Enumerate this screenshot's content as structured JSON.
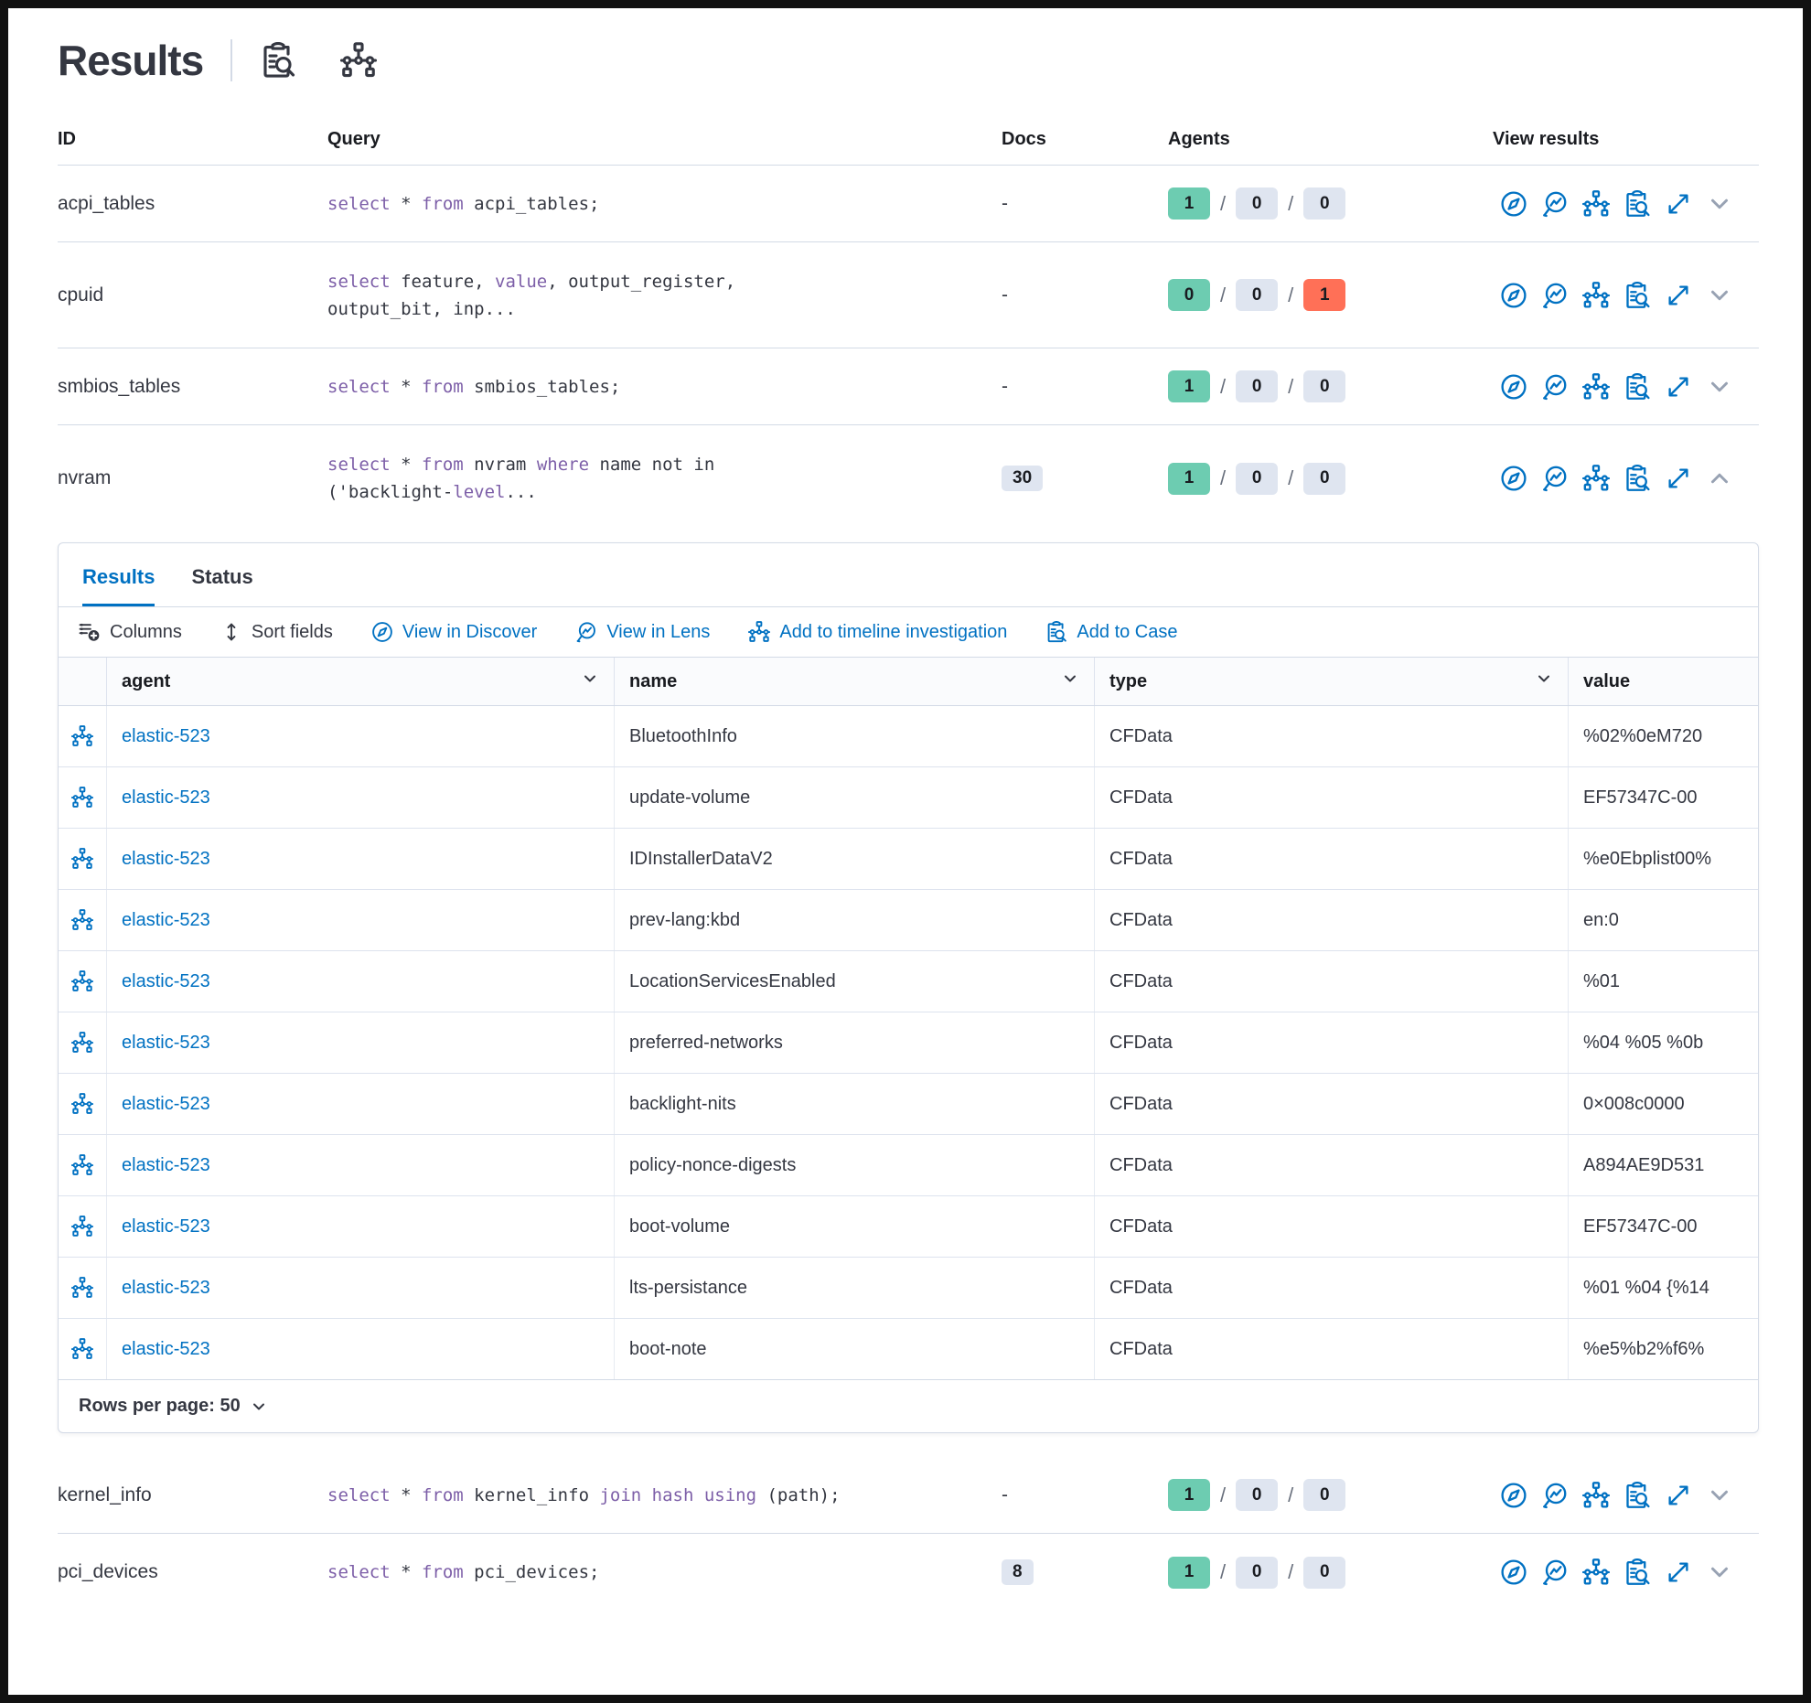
{
  "title": "Results",
  "colors": {
    "primary": "#0071c2",
    "keyword": "#7d5fa8",
    "success-badge": "#6dccb1",
    "danger-badge": "#ff7057",
    "neutral-badge": "#dfe5f0",
    "text": "#343741"
  },
  "icons": {
    "inspect": "clipboard-with-magnifier",
    "timeline": "org-chart-network",
    "discover": "compass",
    "lens": "magnifier-with-chart",
    "expand": "diagonal-expand-arrows",
    "columns": "list-with-add",
    "sort": "up-down-arrow",
    "chevron_down": "chevron-down",
    "chevron_up": "chevron-up"
  },
  "main_table": {
    "columns": {
      "id": "ID",
      "query": "Query",
      "docs": "Docs",
      "agents": "Agents",
      "view": "View results"
    }
  },
  "queries": [
    {
      "id": "acpi_tables",
      "docs": "-",
      "agents": [
        "1",
        "0",
        "0"
      ],
      "segments": [
        {
          "t": "select",
          "k": true
        },
        {
          "t": " * "
        },
        {
          "t": "from",
          "k": true
        },
        {
          "t": " acpi_tables;"
        }
      ]
    },
    {
      "id": "cpuid",
      "docs": "-",
      "agents": [
        "0",
        "0",
        "1"
      ],
      "segments": [
        {
          "t": "select",
          "k": true
        },
        {
          "t": " feature, "
        },
        {
          "t": "value",
          "k": true
        },
        {
          "t": ", output_register,\noutput_bit, inp..."
        }
      ]
    },
    {
      "id": "smbios_tables",
      "docs": "-",
      "agents": [
        "1",
        "0",
        "0"
      ],
      "segments": [
        {
          "t": "select",
          "k": true
        },
        {
          "t": " * "
        },
        {
          "t": "from",
          "k": true
        },
        {
          "t": " smbios_tables;"
        }
      ]
    },
    {
      "id": "nvram",
      "docs": "30",
      "agents": [
        "1",
        "0",
        "0"
      ],
      "segments": [
        {
          "t": "select",
          "k": true
        },
        {
          "t": " * "
        },
        {
          "t": "from",
          "k": true
        },
        {
          "t": " nvram "
        },
        {
          "t": "where",
          "k": true
        },
        {
          "t": " name not in\n('backlight-"
        },
        {
          "t": "level",
          "k": true
        },
        {
          "t": "..."
        }
      ]
    },
    {
      "id": "kernel_info",
      "docs": "-",
      "agents": [
        "1",
        "0",
        "0"
      ],
      "segments": [
        {
          "t": "select",
          "k": true
        },
        {
          "t": " * "
        },
        {
          "t": "from",
          "k": true
        },
        {
          "t": " kernel_info "
        },
        {
          "t": "join hash using",
          "k": true
        },
        {
          "t": " (path);"
        }
      ]
    },
    {
      "id": "pci_devices",
      "docs": "8",
      "agents": [
        "1",
        "0",
        "0"
      ],
      "segments": [
        {
          "t": "select",
          "k": true
        },
        {
          "t": " * "
        },
        {
          "t": "from",
          "k": true
        },
        {
          "t": " pci_devices;"
        }
      ]
    }
  ],
  "panel": {
    "tabs": [
      {
        "label": "Results"
      },
      {
        "label": "Status"
      }
    ],
    "toolbar": [
      {
        "label": "Columns"
      },
      {
        "label": "Sort fields"
      },
      {
        "label": "View in Discover"
      },
      {
        "label": "View in Lens"
      },
      {
        "label": "Add to timeline investigation"
      },
      {
        "label": "Add to Case"
      }
    ],
    "table": {
      "columns": [
        "agent",
        "name",
        "type",
        "value"
      ],
      "rows": [
        {
          "agent": "elastic-523",
          "name": "BluetoothInfo",
          "type": "CFData",
          "value": "%02%0eM720"
        },
        {
          "agent": "elastic-523",
          "name": "update-volume",
          "type": "CFData",
          "value": "EF57347C-00"
        },
        {
          "agent": "elastic-523",
          "name": "IDInstallerDataV2",
          "type": "CFData",
          "value": "%e0Ebplist00%"
        },
        {
          "agent": "elastic-523",
          "name": "prev-lang:kbd",
          "type": "CFData",
          "value": "en:0"
        },
        {
          "agent": "elastic-523",
          "name": "LocationServicesEnabled",
          "type": "CFData",
          "value": "%01"
        },
        {
          "agent": "elastic-523",
          "name": "preferred-networks",
          "type": "CFData",
          "value": "%04 %05 %0b"
        },
        {
          "agent": "elastic-523",
          "name": "backlight-nits",
          "type": "CFData",
          "value": "0×008c0000"
        },
        {
          "agent": "elastic-523",
          "name": "policy-nonce-digests",
          "type": "CFData",
          "value": "A894AE9D531"
        },
        {
          "agent": "elastic-523",
          "name": "boot-volume",
          "type": "CFData",
          "value": "EF57347C-00"
        },
        {
          "agent": "elastic-523",
          "name": "lts-persistance",
          "type": "CFData",
          "value": "%01 %04 {%14"
        },
        {
          "agent": "elastic-523",
          "name": "boot-note",
          "type": "CFData",
          "value": "%e5%b2%f6%"
        }
      ]
    },
    "footer": {
      "rows_per_page": "Rows per page: 50"
    }
  }
}
